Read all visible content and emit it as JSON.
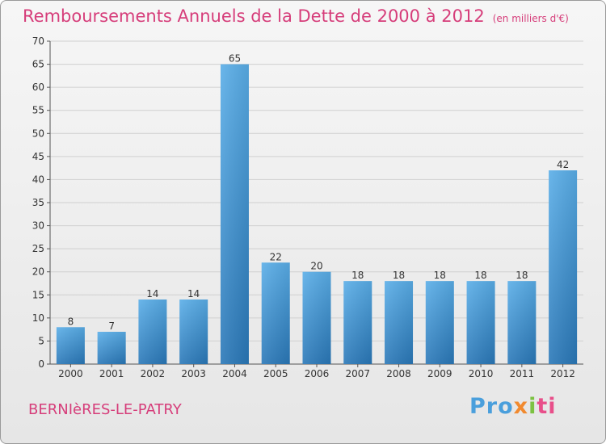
{
  "header": {
    "title": "Remboursements Annuels de la Dette de 2000 à 2012",
    "unit": "(en milliers d'€)"
  },
  "footer": {
    "commune": "BERNIèRES-LE-PATRY",
    "logo": [
      "Pro",
      "x",
      "i",
      "ti"
    ]
  },
  "colors": {
    "title": "#d63d7a",
    "bar_top": "#5aaee8",
    "bar_bottom": "#2a78b8",
    "grid": "#d0d0d0"
  },
  "chart_data": {
    "type": "bar",
    "categories": [
      "2000",
      "2001",
      "2002",
      "2003",
      "2004",
      "2005",
      "2006",
      "2007",
      "2008",
      "2009",
      "2010",
      "2011",
      "2012"
    ],
    "values": [
      8,
      7,
      14,
      14,
      65,
      22,
      20,
      18,
      18,
      18,
      18,
      18,
      42
    ],
    "title": "Remboursements Annuels de la Dette de 2000 à 2012",
    "subtitle": "(en milliers d'€)",
    "xlabel": "",
    "ylabel": "",
    "ylim": [
      0,
      70
    ],
    "yticks": [
      0,
      5,
      10,
      15,
      20,
      25,
      30,
      35,
      40,
      45,
      50,
      55,
      60,
      65,
      70
    ],
    "grid": true,
    "data_labels": true
  }
}
